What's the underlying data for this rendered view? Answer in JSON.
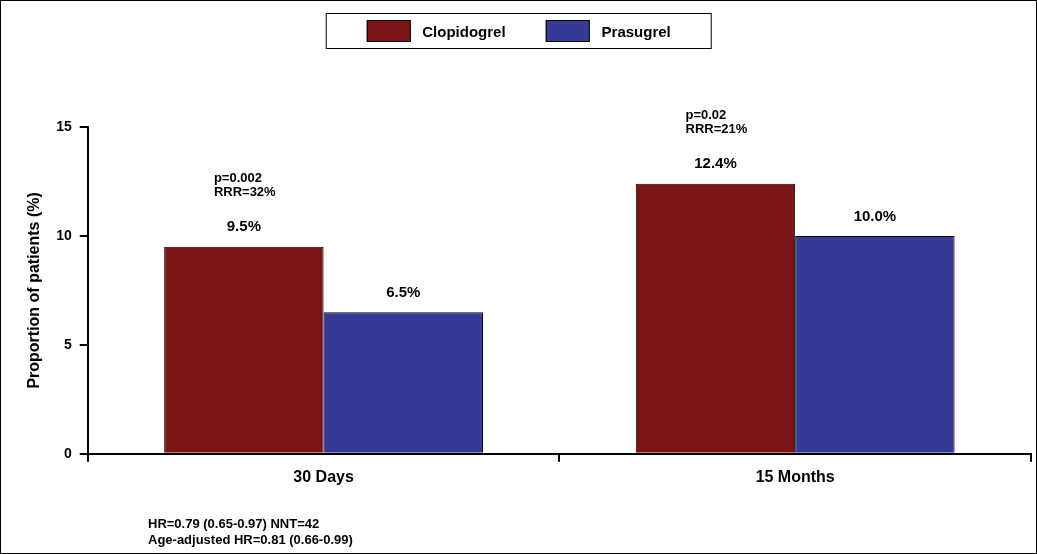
{
  "chart_data": {
    "type": "bar",
    "ylabel": "Proportion of patients (%)",
    "categories": [
      "30 Days",
      "15 Months"
    ],
    "series": [
      {
        "name": "Clopidogrel",
        "color": "#7b1416",
        "values": [
          9.5,
          12.4
        ],
        "value_labels": [
          "9.5%",
          "12.4%"
        ]
      },
      {
        "name": "Prasugrel",
        "color": "#363996",
        "values": [
          6.5,
          10.0
        ],
        "value_labels": [
          "6.5%",
          "10.0%"
        ]
      }
    ],
    "ylim": [
      0,
      15
    ],
    "yticks": [
      0,
      5,
      10,
      15
    ],
    "grid": false,
    "legend": "top",
    "annotations": [
      "p=0.002\nRRR=32%",
      "p=0.02\nRRR=21%",
      "HR=0.79 (0.65-0.97)  NNT=42\nAge-adjusted HR=0.81 (0.66-0.99)"
    ]
  }
}
